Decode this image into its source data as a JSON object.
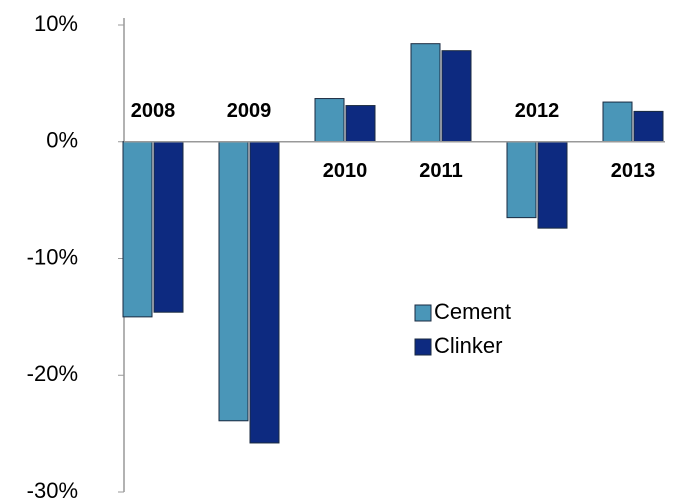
{
  "chart_data": {
    "type": "bar",
    "categories": [
      "2008",
      "2009",
      "2010",
      "2011",
      "2012",
      "2013"
    ],
    "series": [
      {
        "name": "Cement",
        "color": "#4a96b8",
        "values": [
          -15.0,
          -23.9,
          3.7,
          8.4,
          -6.5,
          3.4
        ]
      },
      {
        "name": "Clinker",
        "color": "#0d2a80",
        "values": [
          -14.6,
          -25.8,
          3.1,
          7.8,
          -7.4,
          2.6
        ]
      }
    ],
    "ylim": [
      -30,
      10
    ],
    "yticks": [
      {
        "value": -30,
        "label": "-30%"
      },
      {
        "value": -20,
        "label": "-20%"
      },
      {
        "value": -10,
        "label": "-10%"
      },
      {
        "value": 0,
        "label": "0%"
      },
      {
        "value": 10,
        "label": "10%"
      }
    ],
    "grid": false
  }
}
